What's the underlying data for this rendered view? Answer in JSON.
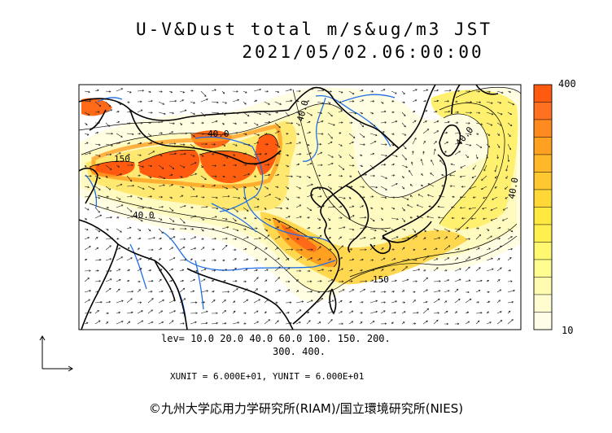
{
  "title_line1": "U-V&Dust total m/s&ug/m3 JST",
  "title_line2": "2021/05/02.06:00:00",
  "levels_line1": "lev= 10.0 20.0 40.0 60.0 100. 150. 200.",
  "levels_line2": "300. 400.",
  "units_text": "XUNIT = 6.000E+01, YUNIT = 6.000E+01",
  "copyright": "©九州大学応用力学研究所(RIAM)/国立環境研究所(NIES)",
  "colorbar": {
    "max_label": "400",
    "min_label": "10",
    "colors": [
      "#ff5a10",
      "#ff7020",
      "#ff8a20",
      "#ffa020",
      "#ffb828",
      "#ffc830",
      "#ffd838",
      "#ffe840",
      "#fff050",
      "#fff870",
      "#fffc90",
      "#fffcb0",
      "#fffcd0",
      "#fffde8"
    ]
  },
  "contour_labels": [
    {
      "text": "40.0",
      "id": "c1"
    },
    {
      "text": "40.0",
      "id": "c2"
    },
    {
      "text": "40.0",
      "id": "c3"
    },
    {
      "text": "40.0",
      "id": "c4"
    },
    {
      "text": "40.0",
      "id": "c5"
    },
    {
      "text": "150",
      "id": "c6"
    },
    {
      "text": "150",
      "id": "c7"
    }
  ],
  "colors": {
    "coast": "#000000",
    "river": "#1e6ee8",
    "arrow": "#222222"
  }
}
